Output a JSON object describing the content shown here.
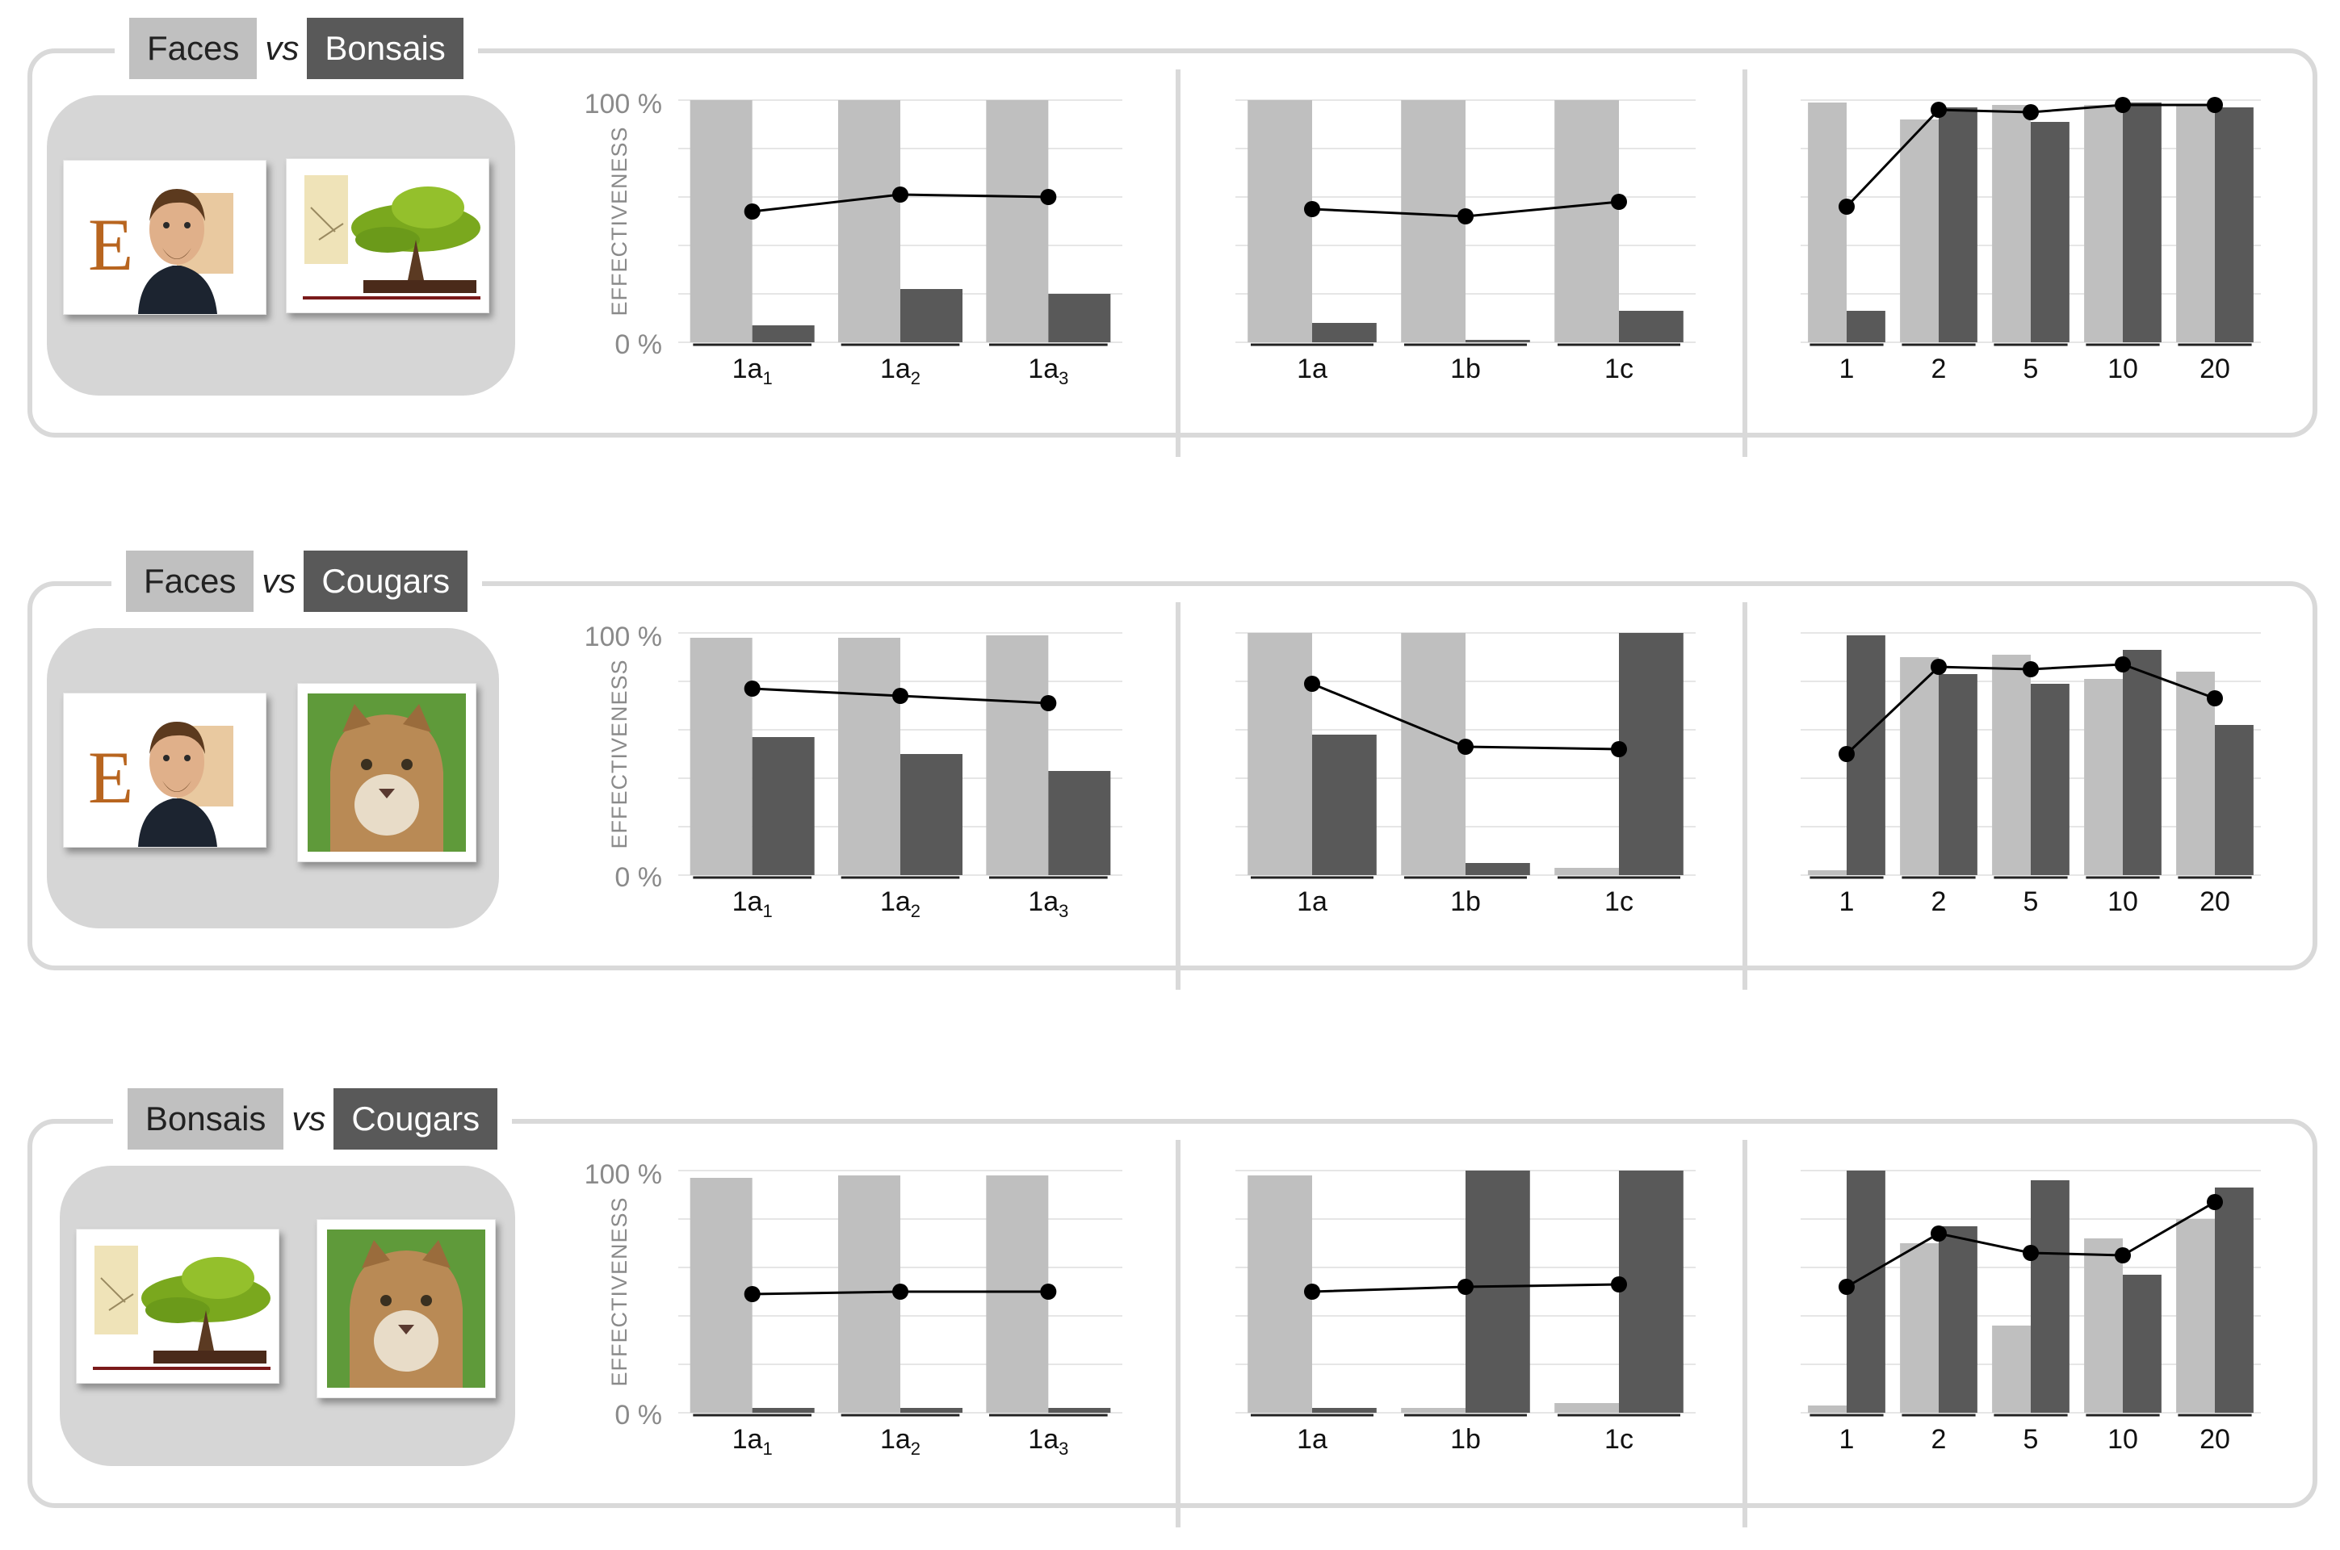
{
  "rows": [
    {
      "left_label": "Faces",
      "vs": "vs",
      "right_label": "Bonsais",
      "left_image": "face-photo",
      "right_image": "bonsai-photo",
      "charts": [
        {
          "type": "bar",
          "categories": [
            "1a1",
            "1a2",
            "1a3"
          ],
          "category_base": [
            "1a",
            "1a",
            "1a"
          ],
          "category_sub": [
            "1",
            "2",
            "3"
          ],
          "series": [
            {
              "values": [
                100,
                100,
                100
              ]
            },
            {
              "values": [
                7,
                22,
                20
              ]
            },
            {
              "values": [
                54,
                61,
                60
              ]
            }
          ],
          "ylim": [
            0,
            100
          ]
        },
        {
          "type": "bar",
          "categories": [
            "1a",
            "1b",
            "1c"
          ],
          "series": [
            {
              "values": [
                100,
                100,
                100
              ]
            },
            {
              "values": [
                8,
                1,
                13
              ]
            },
            {
              "values": [
                55,
                52,
                58
              ]
            }
          ],
          "ylim": [
            0,
            100
          ]
        },
        {
          "type": "bar",
          "categories": [
            "1",
            "2",
            "5",
            "10",
            "20"
          ],
          "series": [
            {
              "values": [
                99,
                92,
                98,
                98,
                98
              ]
            },
            {
              "values": [
                13,
                97,
                91,
                99,
                97
              ]
            },
            {
              "values": [
                56,
                96,
                95,
                98,
                98
              ]
            }
          ],
          "ylim": [
            0,
            100
          ]
        }
      ]
    },
    {
      "left_label": "Faces",
      "vs": "vs",
      "right_label": "Cougars",
      "left_image": "face-photo",
      "right_image": "cougar-photo",
      "charts": [
        {
          "type": "bar",
          "categories": [
            "1a1",
            "1a2",
            "1a3"
          ],
          "category_base": [
            "1a",
            "1a",
            "1a"
          ],
          "category_sub": [
            "1",
            "2",
            "3"
          ],
          "series": [
            {
              "values": [
                98,
                98,
                99
              ]
            },
            {
              "values": [
                57,
                50,
                43
              ]
            },
            {
              "values": [
                77,
                74,
                71
              ]
            }
          ],
          "ylim": [
            0,
            100
          ]
        },
        {
          "type": "bar",
          "categories": [
            "1a",
            "1b",
            "1c"
          ],
          "series": [
            {
              "values": [
                100,
                100,
                3
              ]
            },
            {
              "values": [
                58,
                5,
                100
              ]
            },
            {
              "values": [
                79,
                53,
                52
              ]
            }
          ],
          "ylim": [
            0,
            100
          ]
        },
        {
          "type": "bar",
          "categories": [
            "1",
            "2",
            "5",
            "10",
            "20"
          ],
          "series": [
            {
              "values": [
                2,
                90,
                91,
                81,
                84
              ]
            },
            {
              "values": [
                99,
                83,
                79,
                93,
                62
              ]
            },
            {
              "values": [
                50,
                86,
                85,
                87,
                73
              ]
            }
          ],
          "ylim": [
            0,
            100
          ]
        }
      ]
    },
    {
      "left_label": "Bonsais",
      "vs": "vs",
      "right_label": "Cougars",
      "left_image": "bonsai-photo",
      "right_image": "cougar-photo",
      "charts": [
        {
          "type": "bar",
          "categories": [
            "1a1",
            "1a2",
            "1a3"
          ],
          "category_base": [
            "1a",
            "1a",
            "1a"
          ],
          "category_sub": [
            "1",
            "2",
            "3"
          ],
          "series": [
            {
              "values": [
                97,
                98,
                98
              ]
            },
            {
              "values": [
                2,
                2,
                2
              ]
            },
            {
              "values": [
                49,
                50,
                50
              ]
            }
          ],
          "ylim": [
            0,
            100
          ]
        },
        {
          "type": "bar",
          "categories": [
            "1a",
            "1b",
            "1c"
          ],
          "series": [
            {
              "values": [
                98,
                2,
                4
              ]
            },
            {
              "values": [
                2,
                100,
                100
              ]
            },
            {
              "values": [
                50,
                52,
                53
              ]
            }
          ],
          "ylim": [
            0,
            100
          ]
        },
        {
          "type": "bar",
          "categories": [
            "1",
            "2",
            "5",
            "10",
            "20"
          ],
          "series": [
            {
              "values": [
                3,
                70,
                36,
                72,
                80
              ]
            },
            {
              "values": [
                100,
                77,
                96,
                57,
                93
              ]
            },
            {
              "values": [
                52,
                74,
                66,
                65,
                87
              ]
            }
          ],
          "ylim": [
            0,
            100
          ]
        }
      ]
    }
  ],
  "axis": {
    "ylabel": "EFFECTIVENESS",
    "y_max_label": "100 %",
    "y_min_label": "0 %"
  },
  "colors": {
    "light_bar": "#bfbfbf",
    "dark_bar": "#595959",
    "line": "#000000",
    "grid": "#e6e6e6",
    "frame": "#d9d9d9"
  },
  "chart_data": [
    {
      "type": "bar",
      "panel": "Faces vs Bonsais / 1a1-1a3",
      "categories": [
        "1a1",
        "1a2",
        "1a3"
      ],
      "series": [
        {
          "values": [
            100,
            100,
            100
          ]
        },
        {
          "values": [
            7,
            22,
            20
          ]
        },
        {
          "values": [
            54,
            61,
            60
          ]
        }
      ],
      "ylabel": "EFFECTIVENESS",
      "ylim": [
        0,
        100
      ]
    },
    {
      "type": "bar",
      "panel": "Faces vs Bonsais / 1a-1c",
      "categories": [
        "1a",
        "1b",
        "1c"
      ],
      "series": [
        {
          "values": [
            100,
            100,
            100
          ]
        },
        {
          "values": [
            8,
            1,
            13
          ]
        },
        {
          "values": [
            55,
            52,
            58
          ]
        }
      ],
      "ylim": [
        0,
        100
      ]
    },
    {
      "type": "bar",
      "panel": "Faces vs Bonsais / 1-20",
      "categories": [
        "1",
        "2",
        "5",
        "10",
        "20"
      ],
      "series": [
        {
          "values": [
            99,
            92,
            98,
            98,
            98
          ]
        },
        {
          "values": [
            13,
            97,
            91,
            99,
            97
          ]
        },
        {
          "values": [
            56,
            96,
            95,
            98,
            98
          ]
        }
      ],
      "ylim": [
        0,
        100
      ]
    },
    {
      "type": "bar",
      "panel": "Faces vs Cougars / 1a1-1a3",
      "categories": [
        "1a1",
        "1a2",
        "1a3"
      ],
      "series": [
        {
          "values": [
            98,
            98,
            99
          ]
        },
        {
          "values": [
            57,
            50,
            43
          ]
        },
        {
          "values": [
            77,
            74,
            71
          ]
        }
      ],
      "ylabel": "EFFECTIVENESS",
      "ylim": [
        0,
        100
      ]
    },
    {
      "type": "bar",
      "panel": "Faces vs Cougars / 1a-1c",
      "categories": [
        "1a",
        "1b",
        "1c"
      ],
      "series": [
        {
          "values": [
            100,
            100,
            3
          ]
        },
        {
          "values": [
            58,
            5,
            100
          ]
        },
        {
          "values": [
            79,
            53,
            52
          ]
        }
      ],
      "ylim": [
        0,
        100
      ]
    },
    {
      "type": "bar",
      "panel": "Faces vs Cougars / 1-20",
      "categories": [
        "1",
        "2",
        "5",
        "10",
        "20"
      ],
      "series": [
        {
          "values": [
            2,
            90,
            91,
            81,
            84
          ]
        },
        {
          "values": [
            99,
            83,
            79,
            93,
            62
          ]
        },
        {
          "values": [
            50,
            86,
            85,
            87,
            73
          ]
        }
      ],
      "ylim": [
        0,
        100
      ]
    },
    {
      "type": "bar",
      "panel": "Bonsais vs Cougars / 1a1-1a3",
      "categories": [
        "1a1",
        "1a2",
        "1a3"
      ],
      "series": [
        {
          "values": [
            97,
            98,
            98
          ]
        },
        {
          "values": [
            2,
            2,
            2
          ]
        },
        {
          "values": [
            49,
            50,
            50
          ]
        }
      ],
      "ylabel": "EFFECTIVENESS",
      "ylim": [
        0,
        100
      ]
    },
    {
      "type": "bar",
      "panel": "Bonsais vs Cougars / 1a-1c",
      "categories": [
        "1a",
        "1b",
        "1c"
      ],
      "series": [
        {
          "values": [
            98,
            2,
            4
          ]
        },
        {
          "values": [
            2,
            100,
            100
          ]
        },
        {
          "values": [
            50,
            52,
            53
          ]
        }
      ],
      "ylim": [
        0,
        100
      ]
    },
    {
      "type": "bar",
      "panel": "Bonsais vs Cougars / 1-20",
      "categories": [
        "1",
        "2",
        "5",
        "10",
        "20"
      ],
      "series": [
        {
          "values": [
            3,
            70,
            36,
            72,
            80
          ]
        },
        {
          "values": [
            100,
            77,
            96,
            57,
            93
          ]
        },
        {
          "values": [
            52,
            74,
            66,
            65,
            87
          ]
        }
      ],
      "ylim": [
        0,
        100
      ]
    }
  ]
}
